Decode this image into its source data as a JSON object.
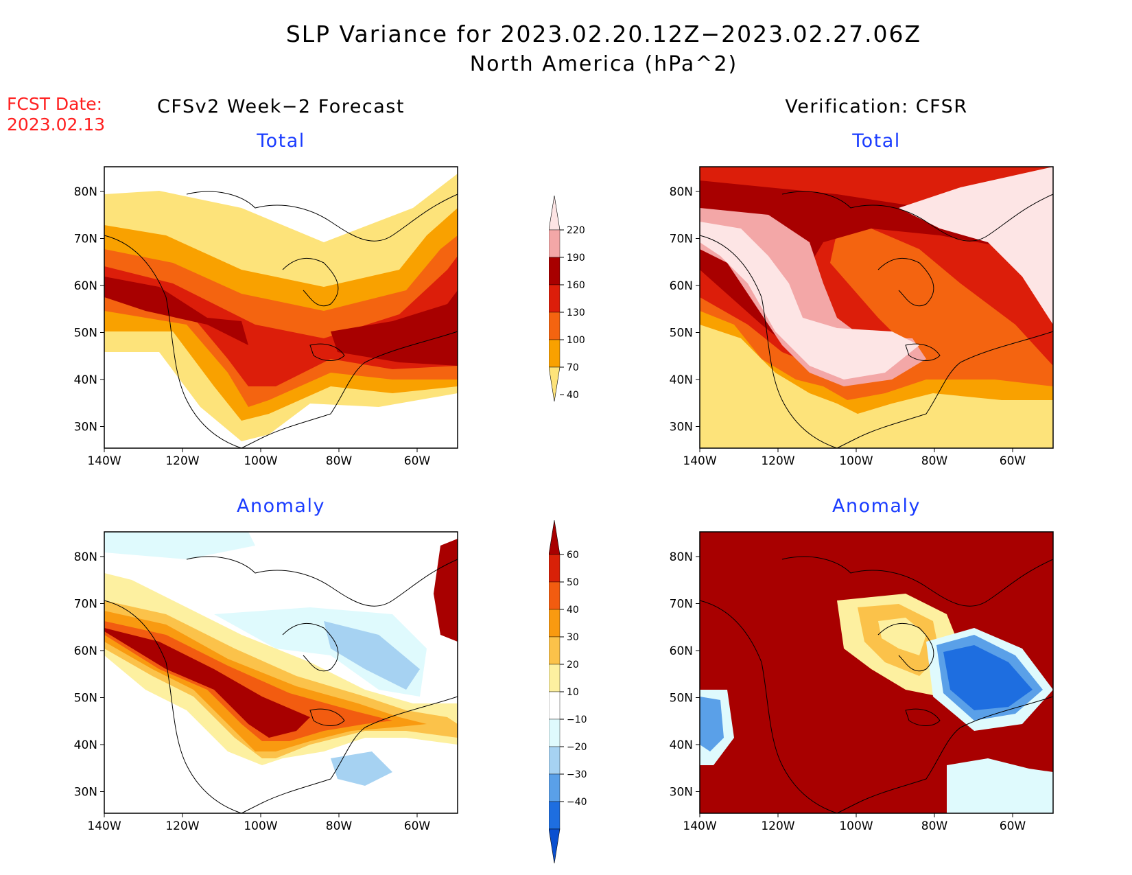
{
  "header": {
    "title": "SLP Variance for 2023.02.20.12Z−2023.02.27.06Z",
    "subtitle": "North America (hPa^2)",
    "fcst_label": "FCST Date:",
    "fcst_date": "2023.02.13"
  },
  "columns": {
    "left": "CFSv2 Week−2 Forecast",
    "right": "Verification: CFSR"
  },
  "panels": {
    "tl": "Total",
    "tr": "Total",
    "bl": "Anomaly",
    "br": "Anomaly"
  },
  "map_axes": {
    "lat_ticks": [
      "80N",
      "70N",
      "60N",
      "50N",
      "40N",
      "30N"
    ],
    "lon_ticks": [
      "140W",
      "120W",
      "100W",
      "80W",
      "60W"
    ]
  },
  "colorbars": {
    "total": {
      "levels": [
        "220",
        "190",
        "160",
        "130",
        "100",
        "70",
        "40"
      ],
      "colors": [
        "#fde5e5",
        "#f3a7a7",
        "#a80000",
        "#dc1e0a",
        "#f46410",
        "#f9a100",
        "#fde37a"
      ]
    },
    "anomaly": {
      "levels": [
        "60",
        "50",
        "40",
        "30",
        "20",
        "10",
        "−10",
        "−20",
        "−30",
        "−40"
      ],
      "colors": [
        "#a80000",
        "#d82108",
        "#f25c10",
        "#f99a10",
        "#fbc24a",
        "#fdf0a0",
        "#ffffff",
        "#dffafd",
        "#a6d2f2",
        "#5aa0e8",
        "#1e6ee0",
        "#0a50d0"
      ]
    }
  }
}
